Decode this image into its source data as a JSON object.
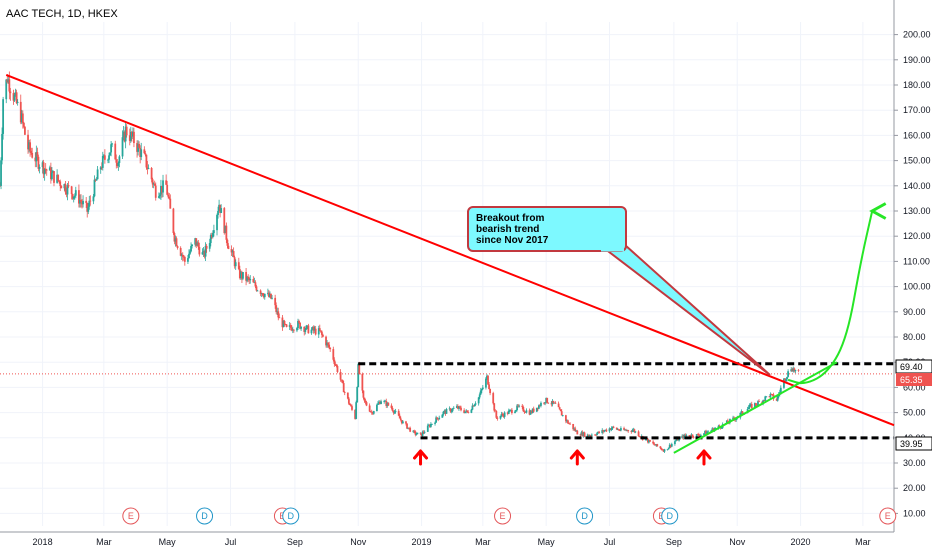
{
  "header": {
    "title": "AAC TECH, 1D, HKEX"
  },
  "price_labels": {
    "resistance": "69.40",
    "last": "65.35",
    "support": "39.95"
  },
  "annotation": {
    "lines": [
      "Breakout from",
      "bearish trend",
      "since Nov 2017"
    ]
  },
  "event_markers": [
    {
      "label": "E",
      "date": "2018-03-27",
      "color": "#e4575a"
    },
    {
      "label": "D",
      "date": "2018-06-06",
      "color": "#2196c8"
    },
    {
      "label": "E",
      "date": "2018-08-20",
      "color": "#e4575a"
    },
    {
      "label": "D",
      "date": "2018-08-28",
      "color": "#2196c8"
    },
    {
      "label": "E",
      "date": "2019-03-20",
      "color": "#e4575a"
    },
    {
      "label": "D",
      "date": "2019-06-07",
      "color": "#2196c8"
    },
    {
      "label": "E",
      "date": "2019-08-20",
      "color": "#e4575a"
    },
    {
      "label": "D",
      "date": "2019-08-28",
      "color": "#2196c8"
    },
    {
      "label": "E",
      "date": "2020-03-25",
      "color": "#e4575a"
    }
  ],
  "chart_data": {
    "type": "candlestick",
    "title": "AAC TECH, 1D, HKEX",
    "x_axis": {
      "range": [
        "2017-11-21",
        "2020-03-31"
      ],
      "ticks": [
        {
          "label": "2018",
          "date": "2018-01-01"
        },
        {
          "label": "Mar",
          "date": "2018-03-01"
        },
        {
          "label": "May",
          "date": "2018-05-01"
        },
        {
          "label": "Jul",
          "date": "2018-07-01"
        },
        {
          "label": "Sep",
          "date": "2018-09-01"
        },
        {
          "label": "Nov",
          "date": "2018-11-01"
        },
        {
          "label": "2019",
          "date": "2019-01-01"
        },
        {
          "label": "Mar",
          "date": "2019-03-01"
        },
        {
          "label": "May",
          "date": "2019-05-01"
        },
        {
          "label": "Jul",
          "date": "2019-07-01"
        },
        {
          "label": "Sep",
          "date": "2019-09-01"
        },
        {
          "label": "Nov",
          "date": "2019-11-01"
        },
        {
          "label": "2020",
          "date": "2020-01-01"
        },
        {
          "label": "Mar",
          "date": "2020-03-01"
        }
      ]
    },
    "y_axis": {
      "range": [
        5,
        205
      ],
      "ticks": [
        10,
        20,
        30,
        40,
        50,
        60,
        70,
        80,
        90,
        100,
        110,
        120,
        130,
        140,
        150,
        160,
        170,
        180,
        190,
        200
      ],
      "tick_labels": [
        "10.00",
        "20.00",
        "30.00",
        "40.00",
        "50.00",
        "60.00",
        "70.00",
        "80.00",
        "90.00",
        "100.00",
        "110.00",
        "120.00",
        "130.00",
        "140.00",
        "150.00",
        "160.00",
        "170.00",
        "180.00",
        "190.00",
        "200.00"
      ]
    },
    "close_path": [
      [
        "2017-11-21",
        140
      ],
      [
        "2017-11-24",
        175
      ],
      [
        "2017-11-28",
        183
      ],
      [
        "2017-12-04",
        176
      ],
      [
        "2017-12-11",
        168
      ],
      [
        "2017-12-18",
        155
      ],
      [
        "2017-12-27",
        150
      ],
      [
        "2018-01-08",
        145
      ],
      [
        "2018-01-22",
        140
      ],
      [
        "2018-02-05",
        135
      ],
      [
        "2018-02-13",
        130
      ],
      [
        "2018-02-26",
        148
      ],
      [
        "2018-03-08",
        155
      ],
      [
        "2018-03-15",
        150
      ],
      [
        "2018-03-22",
        162
      ],
      [
        "2018-03-30",
        158
      ],
      [
        "2018-04-10",
        150
      ],
      [
        "2018-04-20",
        138
      ],
      [
        "2018-04-30",
        140
      ],
      [
        "2018-05-08",
        120
      ],
      [
        "2018-05-18",
        110
      ],
      [
        "2018-05-28",
        118
      ],
      [
        "2018-06-05",
        112
      ],
      [
        "2018-06-12",
        120
      ],
      [
        "2018-06-20",
        133
      ],
      [
        "2018-06-28",
        118
      ],
      [
        "2018-07-09",
        105
      ],
      [
        "2018-07-20",
        102
      ],
      [
        "2018-07-31",
        98
      ],
      [
        "2018-08-10",
        95
      ],
      [
        "2018-08-17",
        87
      ],
      [
        "2018-08-24",
        83
      ],
      [
        "2018-09-04",
        85
      ],
      [
        "2018-09-13",
        83
      ],
      [
        "2018-09-25",
        82
      ],
      [
        "2018-10-05",
        75
      ],
      [
        "2018-10-12",
        67
      ],
      [
        "2018-10-19",
        58
      ],
      [
        "2018-10-29",
        48
      ],
      [
        "2018-11-01",
        68
      ],
      [
        "2018-11-06",
        55
      ],
      [
        "2018-11-14",
        50
      ],
      [
        "2018-11-23",
        55
      ],
      [
        "2018-12-03",
        52
      ],
      [
        "2018-12-14",
        46
      ],
      [
        "2018-12-24",
        42
      ],
      [
        "2018-12-31",
        41
      ],
      [
        "2019-01-09",
        45
      ],
      [
        "2019-01-22",
        50
      ],
      [
        "2019-02-04",
        52
      ],
      [
        "2019-02-14",
        50
      ],
      [
        "2019-02-25",
        56
      ],
      [
        "2019-03-05",
        64
      ],
      [
        "2019-03-14",
        48
      ],
      [
        "2019-03-25",
        50
      ],
      [
        "2019-04-04",
        52
      ],
      [
        "2019-04-16",
        50
      ],
      [
        "2019-04-30",
        55
      ],
      [
        "2019-05-10",
        53
      ],
      [
        "2019-05-20",
        47
      ],
      [
        "2019-05-31",
        42
      ],
      [
        "2019-06-10",
        41
      ],
      [
        "2019-06-21",
        42
      ],
      [
        "2019-07-03",
        44
      ],
      [
        "2019-07-12",
        43
      ],
      [
        "2019-07-24",
        43
      ],
      [
        "2019-08-02",
        40
      ],
      [
        "2019-08-14",
        37
      ],
      [
        "2019-08-23",
        35
      ],
      [
        "2019-09-03",
        39
      ],
      [
        "2019-09-13",
        41
      ],
      [
        "2019-09-25",
        41
      ],
      [
        "2019-10-07",
        43
      ],
      [
        "2019-10-18",
        45
      ],
      [
        "2019-10-31",
        48
      ],
      [
        "2019-11-12",
        52
      ],
      [
        "2019-11-22",
        54
      ],
      [
        "2019-12-02",
        57
      ],
      [
        "2019-12-09",
        55
      ],
      [
        "2019-12-16",
        63
      ],
      [
        "2019-12-23",
        68
      ],
      [
        "2019-12-30",
        65.35
      ]
    ],
    "horizontal_levels": [
      {
        "value": 69.4,
        "from": "2018-11-01",
        "to": "2020-03-31",
        "style": "dashed",
        "color": "#000000"
      },
      {
        "value": 39.95,
        "from": "2018-12-31",
        "to": "2020-03-31",
        "style": "dashed",
        "color": "#000000"
      },
      {
        "value": 65.35,
        "from": "2017-11-21",
        "to": "2020-03-31",
        "style": "dotted",
        "color": "#ef5350"
      }
    ],
    "trendlines": [
      {
        "color": "#ff0000",
        "points": [
          [
            "2017-11-27",
            184
          ],
          [
            "2020-03-31",
            45
          ]
        ]
      },
      {
        "color": "#26e626",
        "points": [
          [
            "2019-09-01",
            34
          ],
          [
            "2020-02-05",
            70
          ]
        ]
      }
    ],
    "projection": {
      "color": "#26e626",
      "points": [
        [
          "2019-12-20",
          63
        ],
        [
          "2020-01-05",
          61
        ],
        [
          "2020-01-28",
          66
        ],
        [
          "2020-02-15",
          80
        ],
        [
          "2020-02-28",
          110
        ],
        [
          "2020-03-10",
          130
        ]
      ]
    },
    "support_arrows": [
      "2018-12-31",
      "2019-05-31",
      "2019-09-30"
    ]
  }
}
